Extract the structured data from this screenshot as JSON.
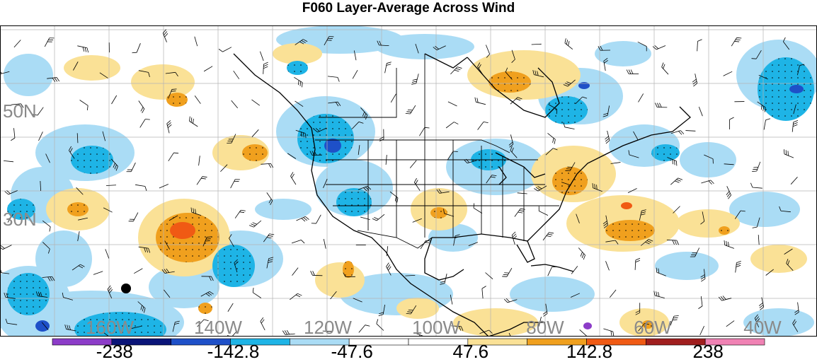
{
  "title": "F060 Layer-Average Across Wind",
  "lat_labels": [
    "50N",
    "30N"
  ],
  "lon_labels": [
    "160W",
    "140W",
    "120W",
    "100W",
    "80W",
    "60W",
    "40W"
  ],
  "colorbar": {
    "colors": [
      "#8c3cc8",
      "#0a1478",
      "#1e50c8",
      "#1eb4e6",
      "#aadcf5",
      "#ffffff",
      "#ffffff",
      "#fae196",
      "#f0a01e",
      "#f05a14",
      "#a01e1e",
      "#f082b4"
    ],
    "labels": [
      "-238",
      "-142.8",
      "-47.6",
      "47.6",
      "142.8",
      "238"
    ]
  },
  "markers": [
    {
      "name": "hawaii-dot"
    }
  ]
}
